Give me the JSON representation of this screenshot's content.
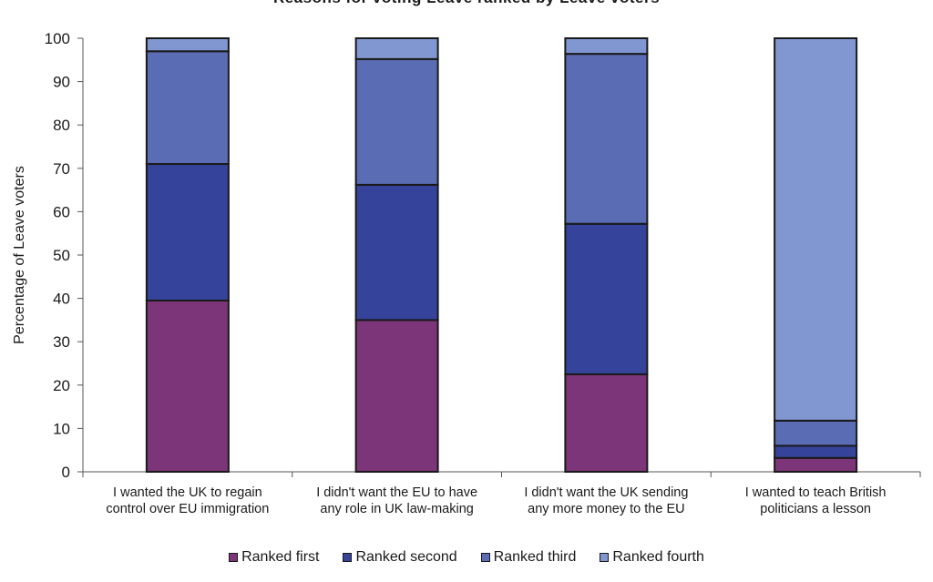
{
  "chart_data": {
    "type": "bar",
    "stacked": true,
    "title": "Reasons for voting Leave ranked by Leave voters",
    "ylabel": "Percentage of Leave voters",
    "xlabel": "",
    "ylim": [
      0,
      100
    ],
    "yticks": [
      0,
      10,
      20,
      30,
      40,
      50,
      60,
      70,
      80,
      90,
      100
    ],
    "categories": [
      [
        "I wanted the UK to regain",
        "control over EU immigration"
      ],
      [
        "I didn't want the EU to have",
        "any role in UK law-making"
      ],
      [
        "I didn't want the UK sending",
        "any more money to the EU"
      ],
      [
        "I wanted to teach British",
        "politicians a lesson"
      ]
    ],
    "series": [
      {
        "name": "Ranked first",
        "color": "#7b3578",
        "values": [
          39.5,
          35,
          22.5,
          3.2
        ]
      },
      {
        "name": "Ranked second",
        "color": "#35449a",
        "values": [
          31.5,
          31.2,
          34.7,
          2.8
        ]
      },
      {
        "name": "Ranked third",
        "color": "#5a6cb4",
        "values": [
          26,
          29,
          39.2,
          5.8
        ]
      },
      {
        "name": "Ranked fourth",
        "color": "#8197d1",
        "values": [
          3,
          4.8,
          3.6,
          88.2
        ]
      }
    ],
    "grid": false,
    "legend_position": "bottom"
  }
}
